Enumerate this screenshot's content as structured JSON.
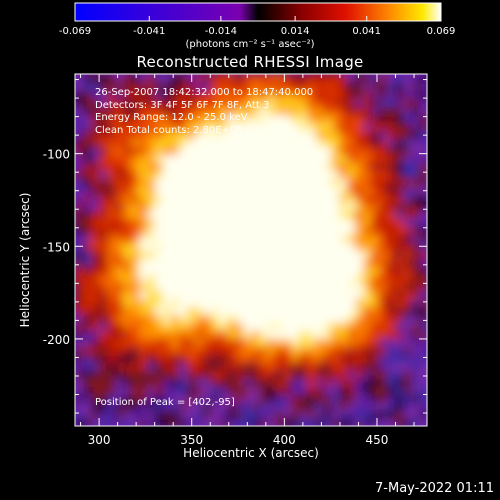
{
  "colorbar": {
    "tick_labels": [
      "-0.069",
      "-0.041",
      "-0.014",
      "0.014",
      "0.041",
      "0.069"
    ],
    "ticks": [
      -0.069,
      -0.041,
      -0.014,
      0.014,
      0.041,
      0.069
    ],
    "range": [
      -0.069,
      0.069
    ],
    "unit_label": "(photons cm⁻² s⁻¹ asec⁻²)"
  },
  "chart_data": {
    "type": "heatmap",
    "title": "Reconstructed RHESSI Image",
    "xlabel": "Heliocentric X (arcsec)",
    "ylabel": "Heliocentric Y (arcsec)",
    "xlim": [
      287,
      477
    ],
    "ylim": [
      -247,
      -57
    ],
    "xticks": [
      300,
      350,
      400,
      450
    ],
    "yticks": [
      -100,
      -150,
      -200
    ],
    "info_lines": [
      "26-Sep-2007 18:42:32.000 to 18:47:40.000",
      "Detectors: 3F 4F 5F 6F 7F 8F, Att 3",
      "Energy Range: 12.0 - 25.0 keV",
      "Clean     Total counts: 2.80E+05"
    ],
    "peak_label": "Position of Peak = [402,-95]",
    "peak": [
      402,
      -95
    ],
    "colormap": "red-temperature with blue/purple negatives"
  },
  "footer": {
    "date": "7-May-2022 01:11"
  }
}
